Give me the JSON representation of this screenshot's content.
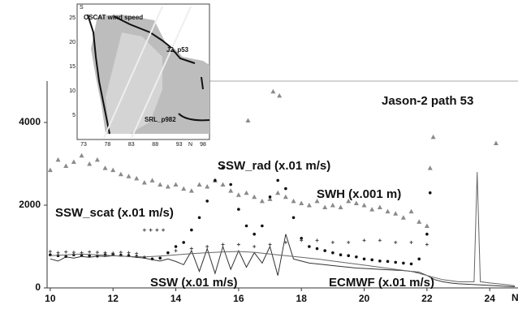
{
  "chart_data": {
    "type": "scatter",
    "title": "Jason-2 path 53",
    "x_label": "N",
    "xlim": [
      9.9,
      24.9
    ],
    "ylim": [
      0,
      5000
    ],
    "xticks": [
      10,
      12,
      14,
      16,
      18,
      20,
      22,
      24
    ],
    "yticks": [
      0,
      2000,
      4000
    ],
    "series": [
      {
        "name": "SWH (x.001 m)",
        "color": "#8a8a8a",
        "marker": "triangle",
        "x": [
          10,
          10.25,
          10.5,
          10.75,
          11,
          11.25,
          11.5,
          11.75,
          12,
          12.25,
          12.5,
          12.75,
          13,
          13.25,
          13.5,
          13.75,
          14,
          14.25,
          14.5,
          14.75,
          15,
          15.25,
          15.5,
          15.75,
          16,
          16.25,
          16.5,
          16.75,
          17,
          17.25,
          17.5,
          17.75,
          18,
          18.25,
          18.5,
          18.75,
          19,
          19.25,
          19.5,
          19.75,
          20,
          20.25,
          20.5,
          20.75,
          21,
          21.25,
          21.5,
          21.75,
          22,
          16.3,
          17.1,
          17.3,
          22.2,
          22.1,
          24.2
        ],
        "values": [
          2850,
          3100,
          2950,
          3050,
          3200,
          3000,
          3100,
          2900,
          2850,
          2750,
          2700,
          2650,
          2550,
          2600,
          2500,
          2450,
          2500,
          2400,
          2350,
          2500,
          2450,
          2600,
          2500,
          2350,
          2250,
          2300,
          2200,
          2100,
          2150,
          2300,
          2200,
          2100,
          2050,
          2000,
          2100,
          1950,
          2000,
          1950,
          2100,
          2050,
          2000,
          1900,
          1950,
          1850,
          1800,
          1700,
          1850,
          1600,
          1500,
          4050,
          4750,
          4650,
          3650,
          2900,
          3500
        ]
      },
      {
        "name": "SSW_rad (x.01 m/s)",
        "color": "#111111",
        "marker": "dot",
        "x": [
          10,
          10.25,
          10.5,
          10.75,
          11,
          11.25,
          11.5,
          11.75,
          12,
          12.25,
          12.5,
          12.75,
          13,
          13.25,
          13.5,
          13.75,
          14,
          14.25,
          14.5,
          14.75,
          15,
          15.25,
          15.5,
          15.75,
          16,
          16.25,
          16.5,
          16.75,
          17,
          17.25,
          17.5,
          17.75,
          18,
          18.25,
          18.5,
          18.75,
          19,
          19.25,
          19.5,
          19.75,
          20,
          20.25,
          20.5,
          20.75,
          21,
          21.25,
          21.5,
          21.75,
          22,
          22.1
        ],
        "values": [
          800,
          780,
          760,
          800,
          790,
          780,
          770,
          800,
          810,
          790,
          780,
          760,
          740,
          700,
          720,
          850,
          1000,
          1100,
          1400,
          1700,
          2100,
          2600,
          2900,
          2500,
          1900,
          1500,
          1300,
          1500,
          2200,
          2600,
          2400,
          1700,
          1200,
          1000,
          950,
          900,
          850,
          800,
          780,
          750,
          700,
          680,
          650,
          640,
          620,
          600,
          580,
          700,
          1300,
          2300
        ]
      },
      {
        "name": "SSW_scat (x.01 m/s)",
        "color": "#444444",
        "marker": "plus",
        "x": [
          10,
          10.25,
          10.5,
          10.75,
          11,
          11.25,
          11.5,
          11.75,
          12,
          12.25,
          12.5,
          12.75,
          13,
          13.2,
          13.4,
          13.6,
          14,
          14.5,
          15,
          15.5,
          16,
          16.5,
          17,
          17.5,
          18,
          18.5,
          19,
          19.5,
          20,
          20.5,
          21,
          21.5,
          22
        ],
        "values": [
          880,
          850,
          870,
          860,
          850,
          870,
          860,
          850,
          840,
          860,
          850,
          830,
          1400,
          1400,
          1400,
          1400,
          900,
          950,
          1000,
          1050,
          1050,
          1000,
          1050,
          1100,
          1150,
          1150,
          1100,
          1100,
          1150,
          1150,
          1100,
          1100,
          1050
        ]
      },
      {
        "name": "SSW (x.01 m/s)",
        "color": "#333333",
        "marker": "line",
        "x": [
          10,
          10.25,
          10.5,
          10.75,
          11,
          11.25,
          11.5,
          11.75,
          12,
          12.25,
          12.5,
          12.75,
          13,
          13.25,
          13.5,
          13.75,
          14,
          14.25,
          14.5,
          14.75,
          15,
          15.25,
          15.5,
          15.75,
          16,
          16.25,
          16.5,
          16.75,
          17,
          17.25,
          17.5,
          17.75,
          18,
          18.25,
          18.5,
          18.75,
          19,
          19.25,
          19.5,
          19.75,
          20,
          20.25,
          20.5,
          20.75,
          21,
          21.25,
          21.5,
          21.75,
          22,
          22.25,
          22.5,
          22.75,
          23,
          23.5,
          24,
          24.5,
          24.8
        ],
        "values": [
          700,
          650,
          750,
          720,
          760,
          740,
          770,
          760,
          780,
          770,
          760,
          740,
          720,
          680,
          650,
          700,
          640,
          560,
          900,
          400,
          950,
          350,
          1000,
          450,
          900,
          500,
          850,
          600,
          1000,
          300,
          1300,
          700,
          650,
          600,
          580,
          560,
          540,
          520,
          500,
          480,
          470,
          460,
          450,
          440,
          430,
          420,
          400,
          380,
          300,
          200,
          150,
          120,
          100,
          80,
          60,
          40,
          30
        ]
      },
      {
        "name": "ECMWF (x.01 m/s)",
        "color": "#666666",
        "marker": "line",
        "x": [
          10,
          10.5,
          11,
          11.5,
          12,
          12.5,
          13,
          13.5,
          14,
          14.5,
          15,
          15.5,
          16,
          16.5,
          17,
          17.5,
          18,
          18.5,
          19,
          19.5,
          20,
          20.5,
          21,
          21.5,
          22,
          22.5,
          23,
          23.5,
          23.6,
          23.7,
          24,
          24.5,
          24.8
        ],
        "values": [
          780,
          800,
          820,
          800,
          780,
          760,
          750,
          770,
          800,
          830,
          850,
          870,
          880,
          860,
          820,
          780,
          740,
          700,
          650,
          600,
          550,
          500,
          450,
          400,
          300,
          200,
          150,
          150,
          2800,
          150,
          120,
          80,
          50
        ]
      }
    ],
    "inset": {
      "title": "OSCAT wind speed",
      "labels": [
        "J2_p53",
        "SRL_p982"
      ],
      "x_label": "N",
      "y_label": "S",
      "xticks": [
        73,
        78,
        83,
        88,
        93,
        98
      ],
      "yticks": [
        25,
        20,
        15,
        10,
        5
      ]
    }
  }
}
